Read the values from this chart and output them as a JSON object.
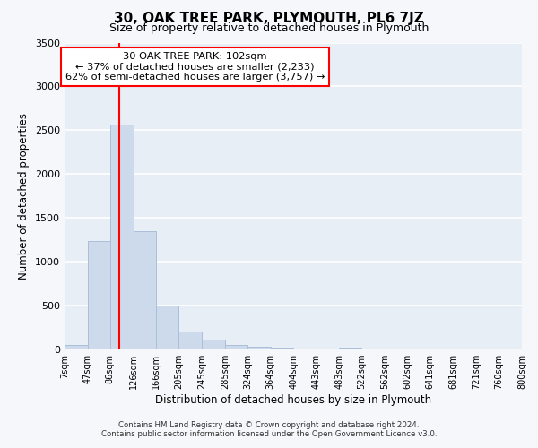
{
  "title": "30, OAK TREE PARK, PLYMOUTH, PL6 7JZ",
  "subtitle": "Size of property relative to detached houses in Plymouth",
  "xlabel": "Distribution of detached houses by size in Plymouth",
  "ylabel": "Number of detached properties",
  "bar_color": "#ccdaeb",
  "bar_edge_color": "#aabfd8",
  "plot_bg_color": "#e8eef5",
  "fig_bg_color": "#f5f7fa",
  "grid_color": "#ffffff",
  "red_line_x": 102,
  "annotation_title": "30 OAK TREE PARK: 102sqm",
  "annotation_line1": "← 37% of detached houses are smaller (2,233)",
  "annotation_line2": "62% of semi-detached houses are larger (3,757) →",
  "bin_edges": [
    7,
    47,
    86,
    126,
    166,
    205,
    245,
    285,
    324,
    364,
    404,
    443,
    483,
    522,
    562,
    602,
    641,
    681,
    721,
    760,
    800
  ],
  "bar_heights": [
    55,
    1240,
    2570,
    1350,
    500,
    205,
    115,
    55,
    30,
    20,
    15,
    10,
    25,
    5,
    5,
    5,
    5,
    3,
    3,
    3
  ],
  "ylim": [
    0,
    3500
  ],
  "yticks": [
    0,
    500,
    1000,
    1500,
    2000,
    2500,
    3000,
    3500
  ],
  "footnote1": "Contains HM Land Registry data © Crown copyright and database right 2024.",
  "footnote2": "Contains public sector information licensed under the Open Government Licence v3.0."
}
